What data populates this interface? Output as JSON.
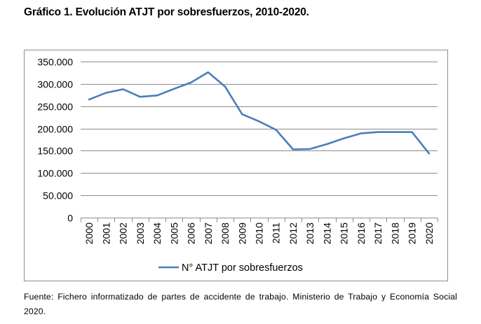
{
  "title": "Gráfico 1. Evolución ATJT por sobresfuerzos, 2010-2020.",
  "source": "Fuente: Fichero informatizado de partes de accidente de trabajo. Ministerio de Trabajo y Economía Social 2020.",
  "chart_data": {
    "type": "line",
    "title": "",
    "xlabel": "",
    "ylabel": "",
    "ylim": [
      0,
      350000
    ],
    "ytick_values": [
      0,
      50000,
      100000,
      150000,
      200000,
      250000,
      300000,
      350000
    ],
    "ytick_labels": [
      "0",
      "50.000",
      "100.000",
      "150.000",
      "200.000",
      "250.000",
      "300.000",
      "350.000"
    ],
    "x": [
      "2000",
      "2001",
      "2002",
      "2003",
      "2004",
      "2005",
      "2006",
      "2007",
      "2008",
      "2009",
      "2010",
      "2011",
      "2012",
      "2013",
      "2014",
      "2015",
      "2016",
      "2017",
      "2018",
      "2019",
      "2020"
    ],
    "series": [
      {
        "name": "N° ATJT por sobresfuerzos",
        "color": "#4a7ebb",
        "values": [
          265000,
          280000,
          288000,
          271000,
          274000,
          289000,
          303000,
          326000,
          294000,
          232000,
          216000,
          197000,
          153000,
          154000,
          165000,
          178000,
          189000,
          192000,
          192000,
          192000,
          144000
        ]
      }
    ],
    "grid": true,
    "gridline_color": "#8c8c8c",
    "legend_position": "bottom"
  }
}
